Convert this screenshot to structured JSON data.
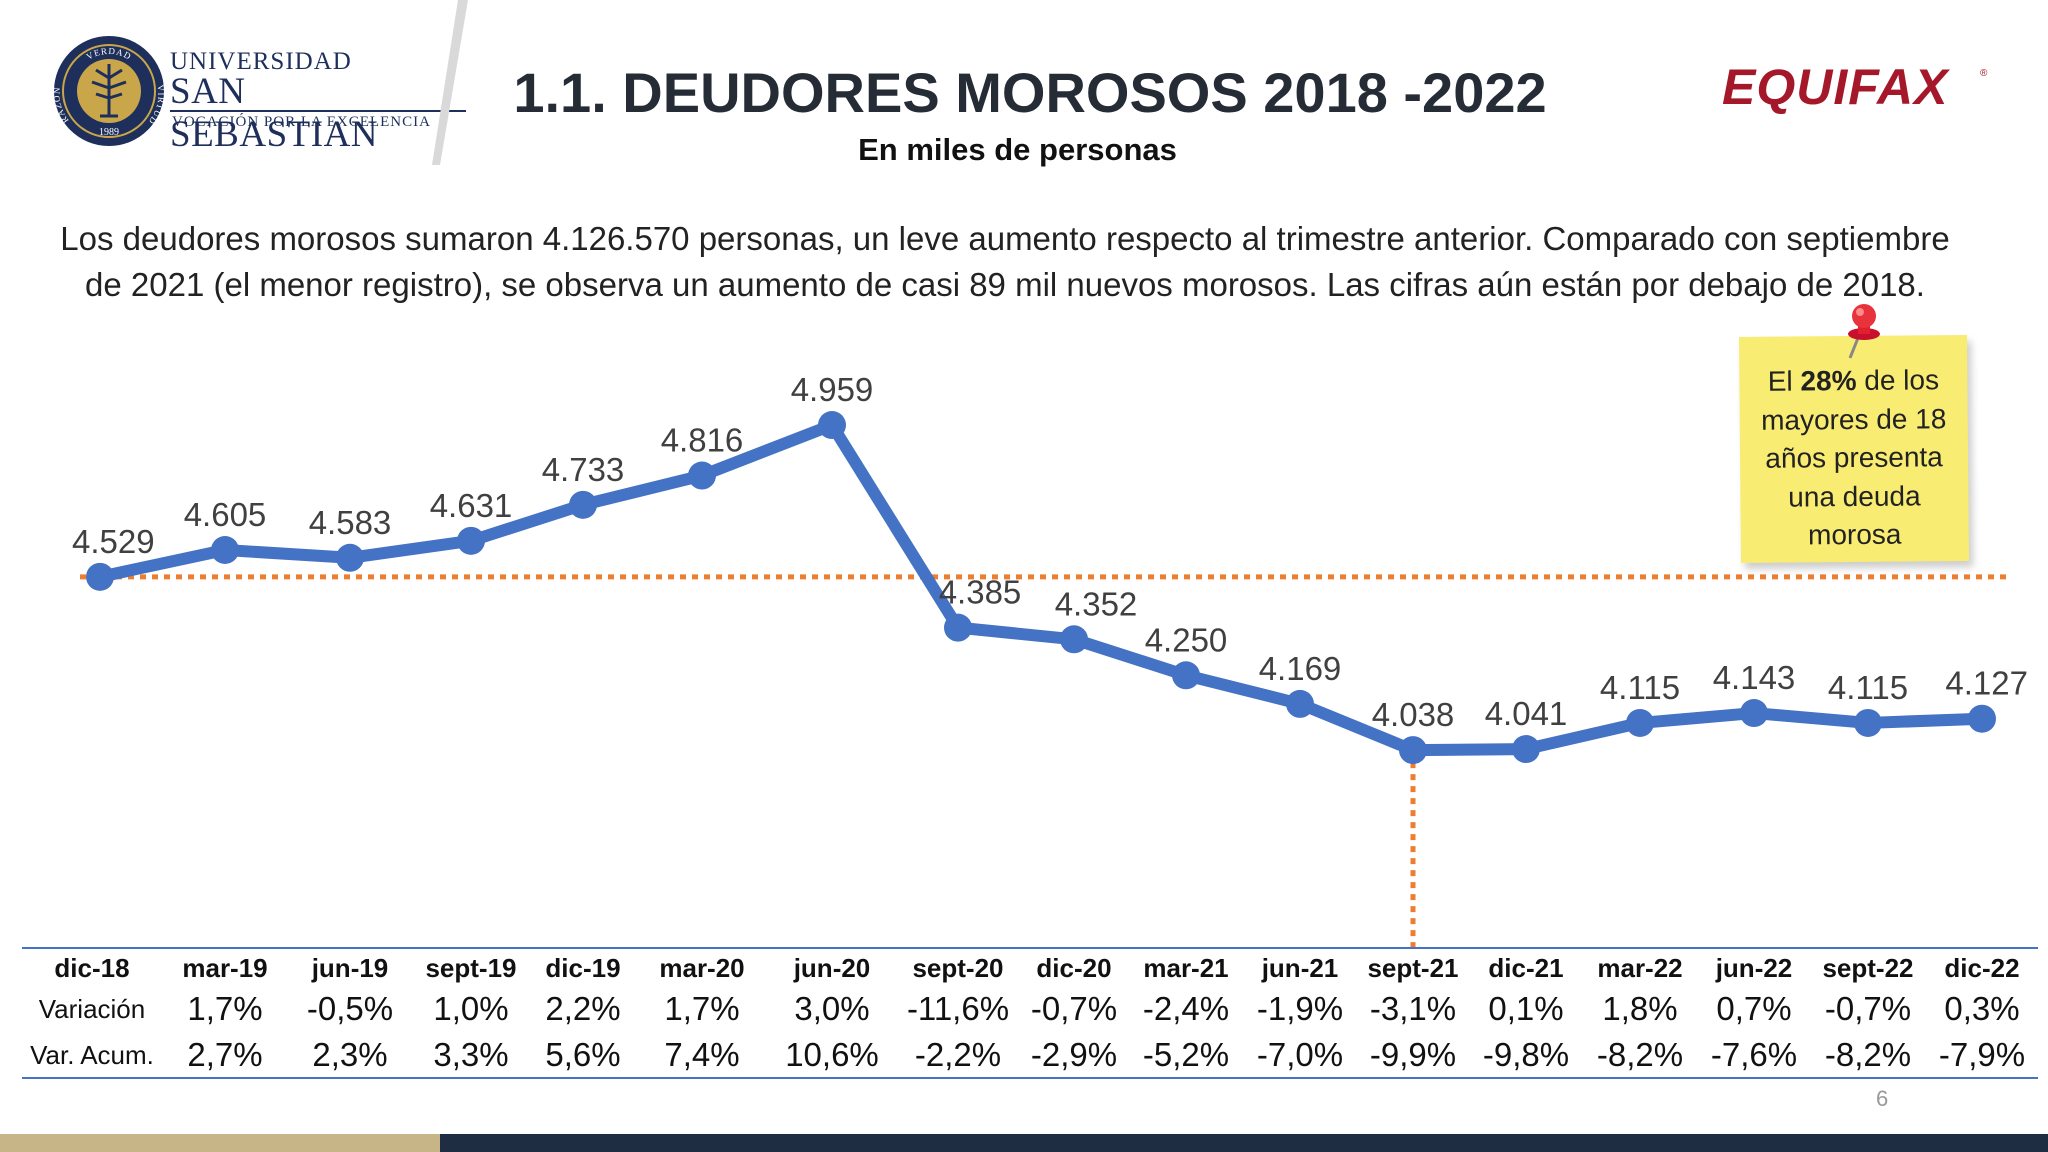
{
  "header": {
    "logo": {
      "ring_top": "VERDAD",
      "ring_left": "RAZÓN",
      "ring_right": "VIRTUD",
      "year": "1989",
      "line1": "UNIVERSIDAD",
      "line2": "SAN SEBASTIAN",
      "line3": "VOCACIÓN POR LA EXCELENCIA"
    },
    "brand": "EQUIFAX",
    "brand_mark": "®"
  },
  "description": "Los deudores morosos sumaron 4.126.570 personas, un leve aumento respecto al trimestre anterior. Comparado con septiembre de 2021 (el menor registro), se observa un aumento de casi 89 mil nuevos morosos. Las cifras aún están por debajo de 2018.",
  "note": {
    "prefix": "El ",
    "bold": "28%",
    "suffix": " de los mayores de 18 años presenta una deuda morosa"
  },
  "chart_data": {
    "type": "line",
    "title": "1.1. DEUDORES MOROSOS 2018 -2022",
    "subtitle": "En miles de personas",
    "categories": [
      "dic-18",
      "mar-19",
      "jun-19",
      "sept-19",
      "dic-19",
      "mar-20",
      "jun-20",
      "sept-20",
      "dic-20",
      "mar-21",
      "jun-21",
      "sept-21",
      "dic-21",
      "mar-22",
      "jun-22",
      "sept-22",
      "dic-22"
    ],
    "series": [
      {
        "values": [
          4529,
          4605,
          4583,
          4631,
          4733,
          4816,
          4959,
          4385,
          4352,
          4250,
          4169,
          4038,
          4041,
          4115,
          4143,
          4115,
          4127
        ],
        "labels": [
          "4.529",
          "4.605",
          "4.583",
          "4.631",
          "4.733",
          "4.816",
          "4.959",
          "4.385",
          "4.352",
          "4.250",
          "4.169",
          "4.038",
          "4.041",
          "4.115",
          "4.143",
          "4.115",
          "4.127"
        ]
      }
    ],
    "reference_line": {
      "value": 4529
    },
    "vertical_marker": {
      "category": "sept-21"
    },
    "ylim": [
      3500,
      5200
    ],
    "colors": {
      "line": "#4472c4",
      "reference": "#ed7d31"
    },
    "table": {
      "rows": [
        {
          "label": "Variación",
          "values": [
            "",
            "1,7%",
            "-0,5%",
            "1,0%",
            "2,2%",
            "1,7%",
            "3,0%",
            "-11,6%",
            "-0,7%",
            "-2,4%",
            "-1,9%",
            "-3,1%",
            "0,1%",
            "1,8%",
            "0,7%",
            "-0,7%",
            "0,3%"
          ]
        },
        {
          "label": "Var. Acum.",
          "values": [
            "",
            "2,7%",
            "2,3%",
            "3,3%",
            "5,6%",
            "7,4%",
            "10,6%",
            "-2,2%",
            "-2,9%",
            "-5,2%",
            "-7,0%",
            "-9,9%",
            "-9,8%",
            "-8,2%",
            "-7,6%",
            "-8,2%",
            "-7,9%"
          ]
        }
      ]
    }
  },
  "page_number": "6"
}
